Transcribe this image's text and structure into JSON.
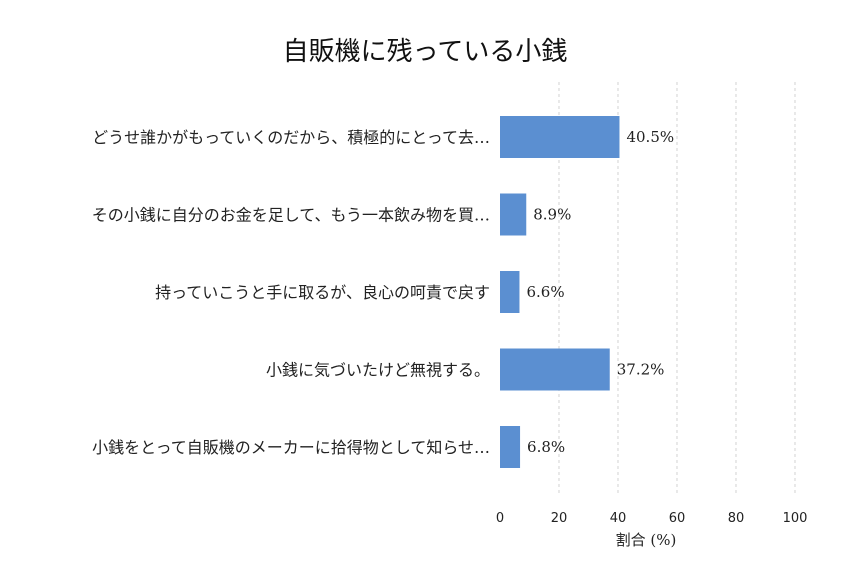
{
  "chart_data": {
    "type": "bar",
    "orientation": "horizontal",
    "title": "自販機に残っている小銭",
    "xlabel": "割合 (%)",
    "ylabel": "",
    "xlim": [
      0,
      100
    ],
    "x_ticks": [
      0,
      20,
      40,
      60,
      80,
      100
    ],
    "grid": true,
    "bar_color": "#5b8fd1",
    "categories": [
      "どうせ誰かがもっていくのだから、積極的にとって去…",
      "その小銭に自分のお金を足して、もう一本飲み物を買…",
      "持っていこうと手に取るが、良心の呵責で戻す",
      "小銭に気づいたけど無視する。",
      "小銭をとって自販機のメーカーに拾得物として知らせ…"
    ],
    "values": [
      40.5,
      8.9,
      6.6,
      37.2,
      6.8
    ],
    "value_labels": [
      "40.5%",
      "8.9%",
      "6.6%",
      "37.2%",
      "6.8%"
    ]
  }
}
